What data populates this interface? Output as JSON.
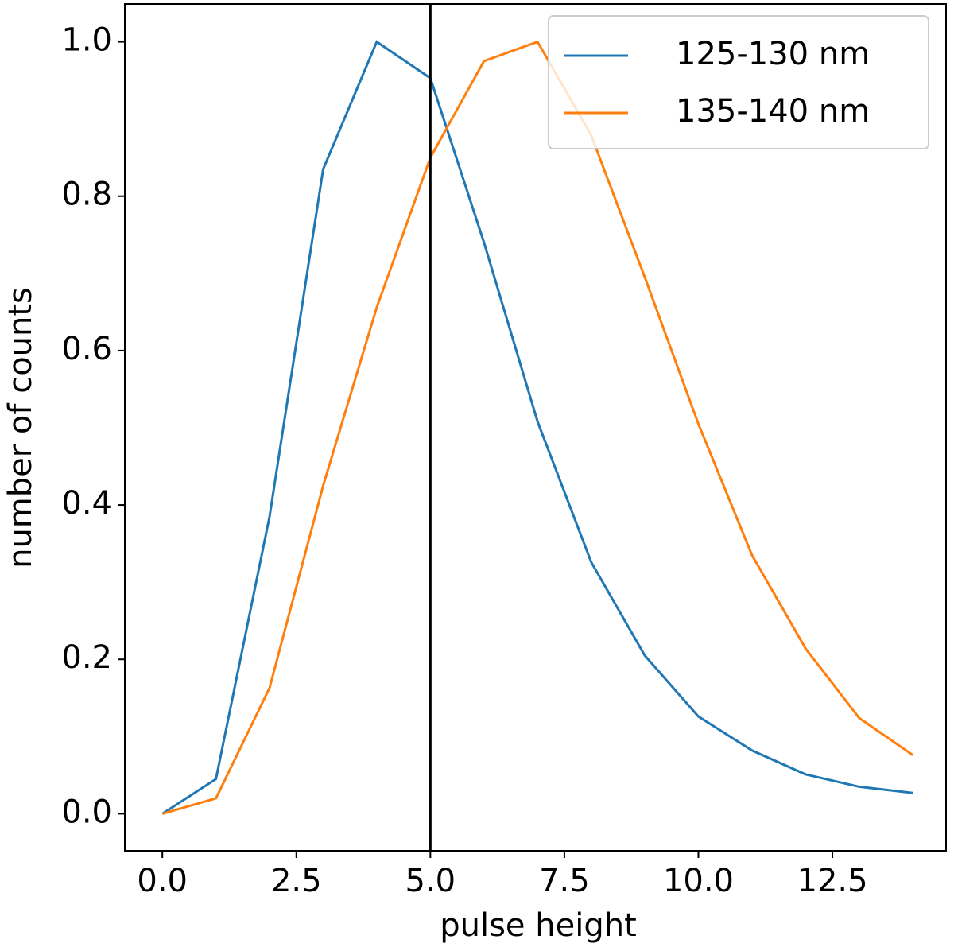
{
  "chart_data": {
    "type": "line",
    "x_label": "pulse height",
    "y_label": "number of counts",
    "x": [
      0,
      1,
      2,
      3,
      4,
      5,
      6,
      7,
      8,
      9,
      10,
      11,
      12,
      13,
      14
    ],
    "series": [
      {
        "name": "125-130 nm",
        "color": "#1f77b4",
        "values": [
          0,
          0.045,
          0.385,
          0.835,
          1.0,
          0.953,
          0.74,
          0.508,
          0.326,
          0.205,
          0.126,
          0.082,
          0.051,
          0.035,
          0.027
        ]
      },
      {
        "name": "135-140 nm",
        "color": "#ff7f0e",
        "values": [
          0,
          0.02,
          0.163,
          0.425,
          0.656,
          0.85,
          0.975,
          1.0,
          0.879,
          0.695,
          0.505,
          0.335,
          0.214,
          0.124,
          0.076
        ]
      }
    ],
    "vline": 5,
    "vline_color": "#000000",
    "xlim": [
      -0.7,
      14.62
    ],
    "ylim": [
      -0.048,
      1.049
    ],
    "xticks": [
      {
        "value": 0,
        "label": "0.0"
      },
      2.5,
      {
        "value": 5,
        "label": "5.0"
      },
      7.5,
      {
        "value": 10,
        "label": "10.0"
      },
      12.5
    ],
    "yticks": [
      {
        "value": 0,
        "label": "0.0"
      },
      0.2,
      0.4,
      0.6,
      0.8,
      {
        "value": 1,
        "label": "1.0"
      }
    ],
    "grid": false,
    "legend": "upper right"
  }
}
